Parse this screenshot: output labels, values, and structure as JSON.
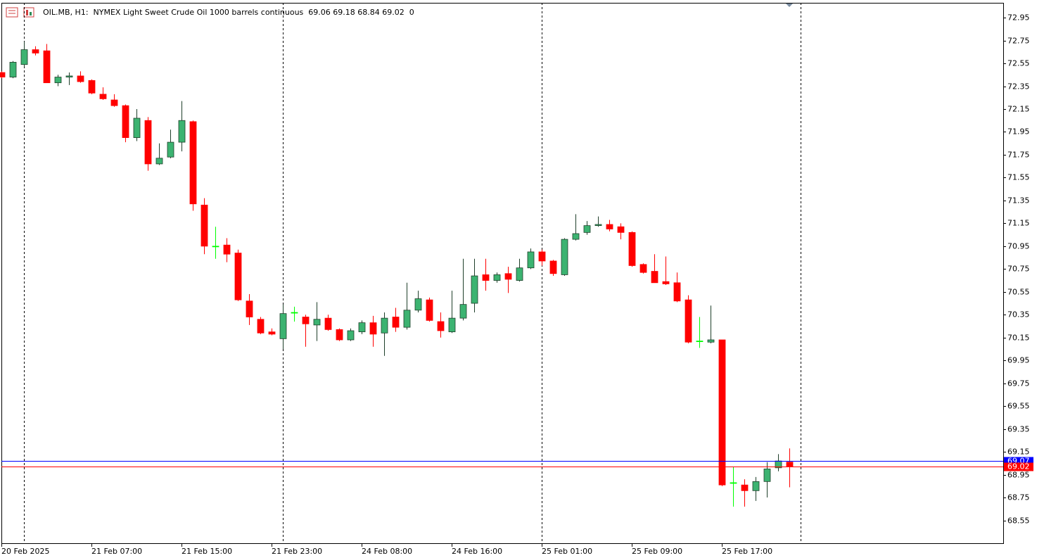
{
  "chart_data": {
    "type": "candlestick",
    "title": "OIL.MB, H1:  NYMEX Light Sweet Crude Oil 1000 barrels continuous  69.06 69.18 68.84 69.02  0",
    "categories": [
      "20 Feb 2025",
      null,
      null,
      null,
      null,
      null,
      null,
      null,
      "21 Feb 07:00",
      null,
      null,
      null,
      null,
      null,
      null,
      null,
      "21 Feb 15:00",
      null,
      null,
      null,
      null,
      null,
      null,
      null,
      "21 Feb 23:00",
      null,
      null,
      null,
      null,
      null,
      null,
      null,
      "24 Feb 08:00",
      null,
      null,
      null,
      null,
      null,
      null,
      null,
      "24 Feb 16:00",
      null,
      null,
      null,
      null,
      null,
      null,
      null,
      "25 Feb 01:00",
      null,
      null,
      null,
      null,
      null,
      null,
      null,
      "25 Feb 09:00",
      null,
      null,
      null,
      null,
      null,
      null,
      null,
      "25 Feb 17:00",
      null,
      null,
      null,
      null,
      null,
      null
    ],
    "open": [
      72.47,
      72.43,
      72.54,
      72.67,
      72.66,
      72.38,
      72.43,
      72.44,
      72.4,
      72.28,
      72.23,
      72.18,
      71.9,
      72.05,
      71.67,
      71.73,
      71.86,
      72.04,
      71.31,
      70.95,
      70.96,
      70.89,
      70.47,
      70.31,
      70.2,
      70.14,
      70.37,
      70.33,
      70.26,
      70.32,
      70.22,
      70.13,
      70.2,
      70.28,
      70.19,
      70.33,
      70.24,
      70.39,
      70.48,
      70.29,
      70.2,
      70.32,
      70.45,
      70.7,
      70.65,
      70.71,
      70.65,
      70.76,
      70.9,
      70.82,
      70.7,
      71.01,
      71.07,
      71.13,
      71.14,
      71.12,
      71.07,
      70.79,
      70.73,
      70.64,
      70.63,
      70.48,
      70.12,
      70.11,
      70.13,
      68.88,
      68.86,
      68.81,
      68.89,
      69.01,
      69.06
    ],
    "high": [
      72.48,
      72.57,
      72.74,
      72.7,
      72.72,
      72.45,
      72.47,
      72.48,
      72.41,
      72.34,
      72.28,
      72.19,
      72.15,
      72.08,
      71.85,
      71.97,
      72.22,
      72.05,
      71.37,
      71.12,
      71.02,
      70.92,
      70.53,
      70.33,
      70.23,
      70.44,
      70.42,
      70.35,
      70.46,
      70.35,
      70.23,
      70.23,
      70.3,
      70.34,
      70.37,
      70.41,
      70.63,
      70.56,
      70.5,
      70.37,
      70.56,
      70.84,
      70.84,
      70.84,
      70.72,
      70.77,
      70.84,
      70.93,
      70.92,
      70.83,
      71.02,
      71.23,
      71.17,
      71.21,
      71.18,
      71.15,
      71.08,
      70.8,
      70.88,
      70.86,
      70.72,
      70.52,
      70.33,
      70.43,
      70.13,
      69.02,
      68.91,
      68.93,
      69.06,
      69.13,
      69.18
    ],
    "low": [
      72.42,
      72.42,
      72.52,
      72.62,
      72.38,
      72.35,
      72.36,
      72.38,
      72.28,
      72.23,
      72.17,
      71.86,
      71.87,
      71.61,
      71.66,
      71.72,
      71.78,
      71.26,
      70.88,
      70.84,
      70.81,
      70.47,
      70.26,
      70.18,
      70.17,
      70.05,
      70.29,
      70.07,
      70.12,
      70.21,
      70.12,
      70.12,
      70.18,
      70.07,
      69.99,
      70.2,
      70.22,
      70.37,
      70.29,
      70.15,
      70.19,
      70.3,
      70.37,
      70.56,
      70.63,
      70.54,
      70.64,
      70.75,
      70.78,
      70.69,
      70.69,
      71.0,
      71.05,
      71.12,
      71.08,
      71.01,
      70.77,
      70.71,
      70.63,
      70.61,
      70.46,
      70.1,
      70.06,
      70.1,
      68.85,
      68.67,
      68.67,
      68.72,
      68.75,
      68.98,
      68.84
    ],
    "close": [
      72.43,
      72.56,
      72.67,
      72.64,
      72.38,
      72.43,
      72.44,
      72.39,
      72.29,
      72.24,
      72.18,
      71.9,
      72.07,
      71.67,
      71.72,
      71.86,
      72.05,
      71.32,
      70.95,
      70.95,
      70.88,
      70.48,
      70.33,
      70.19,
      70.18,
      70.36,
      70.37,
      70.27,
      70.31,
      70.22,
      70.13,
      70.21,
      70.28,
      70.18,
      70.32,
      70.24,
      70.39,
      70.49,
      70.3,
      70.21,
      70.32,
      70.44,
      70.69,
      70.65,
      70.7,
      70.66,
      70.76,
      70.9,
      70.82,
      70.71,
      71.01,
      71.06,
      71.13,
      71.14,
      71.1,
      71.07,
      70.78,
      70.72,
      70.63,
      70.62,
      70.47,
      70.11,
      70.12,
      70.13,
      68.86,
      68.88,
      68.81,
      68.89,
      69.0,
      69.07,
      69.02
    ],
    "up_color": "#3cb371",
    "up_border": "#1f3f2a",
    "down_color": "#ff0000",
    "doji_color": "#00ff00",
    "ylim": [
      68.35,
      73.08
    ],
    "yticks": [
      72.95,
      72.75,
      72.55,
      72.35,
      72.15,
      71.95,
      71.75,
      71.55,
      71.35,
      71.15,
      70.95,
      70.75,
      70.55,
      70.35,
      70.15,
      69.95,
      69.75,
      69.55,
      69.35,
      69.15,
      68.95,
      68.75,
      68.55
    ],
    "price_lines": [
      {
        "value": 69.07,
        "color": "#0000ff"
      },
      {
        "value": 69.02,
        "color": "#ff0000"
      }
    ]
  }
}
